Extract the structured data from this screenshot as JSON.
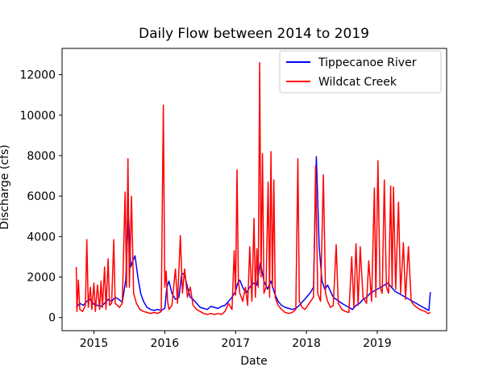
{
  "chart_data": {
    "type": "line",
    "title": "Daily Flow between 2014 to 2019",
    "xlabel": "Date",
    "ylabel": "Discharge (cfs)",
    "xlim": [
      2014.55,
      2019.98
    ],
    "ylim": [
      -650,
      13300
    ],
    "x_ticks": [
      2015,
      2016,
      2017,
      2018,
      2019
    ],
    "x_tick_labels": [
      "2015",
      "2016",
      "2017",
      "2018",
      "2019"
    ],
    "y_ticks": [
      0,
      2000,
      4000,
      6000,
      8000,
      10000,
      12000
    ],
    "y_tick_labels": [
      "0",
      "2000",
      "4000",
      "6000",
      "8000",
      "10000",
      "12000"
    ],
    "grid": false,
    "legend_position": "top-right",
    "series": [
      {
        "name": "Tippecanoe River",
        "color": "#0000ff",
        "points": [
          [
            2014.75,
            500
          ],
          [
            2014.8,
            700
          ],
          [
            2014.85,
            600
          ],
          [
            2014.9,
            800
          ],
          [
            2014.95,
            900
          ],
          [
            2015.0,
            650
          ],
          [
            2015.05,
            600
          ],
          [
            2015.1,
            550
          ],
          [
            2015.15,
            700
          ],
          [
            2015.2,
            900
          ],
          [
            2015.25,
            800
          ],
          [
            2015.3,
            1000
          ],
          [
            2015.35,
            900
          ],
          [
            2015.4,
            750
          ],
          [
            2015.45,
            1900
          ],
          [
            2015.47,
            3700
          ],
          [
            2015.49,
            4900
          ],
          [
            2015.52,
            2500
          ],
          [
            2015.55,
            2800
          ],
          [
            2015.58,
            3050
          ],
          [
            2015.62,
            2000
          ],
          [
            2015.66,
            1200
          ],
          [
            2015.7,
            800
          ],
          [
            2015.75,
            500
          ],
          [
            2015.8,
            400
          ],
          [
            2015.85,
            350
          ],
          [
            2015.9,
            400
          ],
          [
            2015.95,
            350
          ],
          [
            2016.0,
            450
          ],
          [
            2016.03,
            1500
          ],
          [
            2016.06,
            1800
          ],
          [
            2016.1,
            1200
          ],
          [
            2016.15,
            900
          ],
          [
            2016.2,
            1000
          ],
          [
            2016.24,
            2200
          ],
          [
            2016.28,
            2100
          ],
          [
            2016.32,
            1500
          ],
          [
            2016.36,
            1000
          ],
          [
            2016.4,
            900
          ],
          [
            2016.45,
            700
          ],
          [
            2016.5,
            500
          ],
          [
            2016.55,
            450
          ],
          [
            2016.6,
            400
          ],
          [
            2016.65,
            550
          ],
          [
            2016.7,
            500
          ],
          [
            2016.75,
            450
          ],
          [
            2016.8,
            550
          ],
          [
            2016.85,
            600
          ],
          [
            2016.9,
            800
          ],
          [
            2016.95,
            1000
          ],
          [
            2017.0,
            1300
          ],
          [
            2017.03,
            1700
          ],
          [
            2017.06,
            1850
          ],
          [
            2017.1,
            1500
          ],
          [
            2017.15,
            1200
          ],
          [
            2017.2,
            1500
          ],
          [
            2017.25,
            1700
          ],
          [
            2017.3,
            1600
          ],
          [
            2017.35,
            2700
          ],
          [
            2017.4,
            1800
          ],
          [
            2017.45,
            1400
          ],
          [
            2017.5,
            1800
          ],
          [
            2017.55,
            1200
          ],
          [
            2017.6,
            800
          ],
          [
            2017.65,
            600
          ],
          [
            2017.7,
            500
          ],
          [
            2017.75,
            450
          ],
          [
            2017.8,
            400
          ],
          [
            2017.85,
            450
          ],
          [
            2017.9,
            600
          ],
          [
            2017.95,
            800
          ],
          [
            2018.0,
            1000
          ],
          [
            2018.05,
            1200
          ],
          [
            2018.1,
            1500
          ],
          [
            2018.14,
            7950
          ],
          [
            2018.18,
            3500
          ],
          [
            2018.22,
            1800
          ],
          [
            2018.26,
            1400
          ],
          [
            2018.3,
            1600
          ],
          [
            2018.34,
            1300
          ],
          [
            2018.38,
            1000
          ],
          [
            2018.42,
            900
          ],
          [
            2018.46,
            800
          ],
          [
            2018.5,
            700
          ],
          [
            2018.55,
            600
          ],
          [
            2018.6,
            500
          ],
          [
            2018.65,
            400
          ],
          [
            2018.7,
            600
          ],
          [
            2018.75,
            700
          ],
          [
            2018.8,
            900
          ],
          [
            2018.85,
            1000
          ],
          [
            2018.9,
            1200
          ],
          [
            2018.95,
            1300
          ],
          [
            2019.0,
            1400
          ],
          [
            2019.05,
            1500
          ],
          [
            2019.1,
            1600
          ],
          [
            2019.15,
            1700
          ],
          [
            2019.2,
            1500
          ],
          [
            2019.25,
            1300
          ],
          [
            2019.3,
            1200
          ],
          [
            2019.35,
            1100
          ],
          [
            2019.4,
            1000
          ],
          [
            2019.45,
            900
          ],
          [
            2019.5,
            800
          ],
          [
            2019.55,
            700
          ],
          [
            2019.6,
            600
          ],
          [
            2019.65,
            500
          ],
          [
            2019.7,
            400
          ],
          [
            2019.73,
            350
          ],
          [
            2019.75,
            1250
          ]
        ]
      },
      {
        "name": "Wildcat Creek",
        "color": "#ff0000",
        "points": [
          [
            2014.75,
            2500
          ],
          [
            2014.76,
            300
          ],
          [
            2014.78,
            1850
          ],
          [
            2014.8,
            400
          ],
          [
            2014.84,
            300
          ],
          [
            2014.88,
            600
          ],
          [
            2014.9,
            3850
          ],
          [
            2014.92,
            500
          ],
          [
            2014.95,
            1500
          ],
          [
            2014.97,
            400
          ],
          [
            2015.0,
            1700
          ],
          [
            2015.02,
            300
          ],
          [
            2015.05,
            1600
          ],
          [
            2015.08,
            400
          ],
          [
            2015.1,
            1800
          ],
          [
            2015.12,
            500
          ],
          [
            2015.15,
            2500
          ],
          [
            2015.17,
            400
          ],
          [
            2015.2,
            2900
          ],
          [
            2015.22,
            600
          ],
          [
            2015.25,
            700
          ],
          [
            2015.28,
            3850
          ],
          [
            2015.3,
            700
          ],
          [
            2015.33,
            600
          ],
          [
            2015.36,
            500
          ],
          [
            2015.4,
            700
          ],
          [
            2015.44,
            6200
          ],
          [
            2015.46,
            1500
          ],
          [
            2015.48,
            7850
          ],
          [
            2015.5,
            1500
          ],
          [
            2015.53,
            6000
          ],
          [
            2015.56,
            1200
          ],
          [
            2015.6,
            700
          ],
          [
            2015.65,
            400
          ],
          [
            2015.7,
            300
          ],
          [
            2015.75,
            250
          ],
          [
            2015.8,
            200
          ],
          [
            2015.85,
            250
          ],
          [
            2015.9,
            200
          ],
          [
            2015.95,
            300
          ],
          [
            2015.98,
            10500
          ],
          [
            2016.0,
            1500
          ],
          [
            2016.02,
            2300
          ],
          [
            2016.04,
            800
          ],
          [
            2016.06,
            400
          ],
          [
            2016.1,
            600
          ],
          [
            2016.15,
            2400
          ],
          [
            2016.18,
            700
          ],
          [
            2016.22,
            4050
          ],
          [
            2016.25,
            1200
          ],
          [
            2016.28,
            2400
          ],
          [
            2016.32,
            1000
          ],
          [
            2016.36,
            1500
          ],
          [
            2016.4,
            600
          ],
          [
            2016.45,
            400
          ],
          [
            2016.5,
            300
          ],
          [
            2016.55,
            200
          ],
          [
            2016.6,
            150
          ],
          [
            2016.65,
            200
          ],
          [
            2016.7,
            150
          ],
          [
            2016.75,
            200
          ],
          [
            2016.8,
            150
          ],
          [
            2016.85,
            300
          ],
          [
            2016.9,
            700
          ],
          [
            2016.95,
            400
          ],
          [
            2016.98,
            3300
          ],
          [
            2017.0,
            1100
          ],
          [
            2017.02,
            7300
          ],
          [
            2017.04,
            1800
          ],
          [
            2017.06,
            1200
          ],
          [
            2017.1,
            800
          ],
          [
            2017.14,
            1500
          ],
          [
            2017.17,
            600
          ],
          [
            2017.2,
            3500
          ],
          [
            2017.23,
            800
          ],
          [
            2017.26,
            4900
          ],
          [
            2017.28,
            1000
          ],
          [
            2017.3,
            3400
          ],
          [
            2017.32,
            1500
          ],
          [
            2017.34,
            12600
          ],
          [
            2017.36,
            2000
          ],
          [
            2017.38,
            8100
          ],
          [
            2017.4,
            1200
          ],
          [
            2017.43,
            1500
          ],
          [
            2017.46,
            6700
          ],
          [
            2017.48,
            1000
          ],
          [
            2017.5,
            8200
          ],
          [
            2017.52,
            1500
          ],
          [
            2017.54,
            6800
          ],
          [
            2017.56,
            1000
          ],
          [
            2017.6,
            600
          ],
          [
            2017.65,
            400
          ],
          [
            2017.7,
            250
          ],
          [
            2017.75,
            200
          ],
          [
            2017.8,
            250
          ],
          [
            2017.85,
            400
          ],
          [
            2017.88,
            7850
          ],
          [
            2017.9,
            800
          ],
          [
            2017.94,
            500
          ],
          [
            2017.98,
            400
          ],
          [
            2018.02,
            600
          ],
          [
            2018.06,
            800
          ],
          [
            2018.1,
            1000
          ],
          [
            2018.13,
            7500
          ],
          [
            2018.16,
            1200
          ],
          [
            2018.2,
            800
          ],
          [
            2018.24,
            7050
          ],
          [
            2018.27,
            1200
          ],
          [
            2018.3,
            800
          ],
          [
            2018.34,
            500
          ],
          [
            2018.38,
            600
          ],
          [
            2018.42,
            3600
          ],
          [
            2018.45,
            700
          ],
          [
            2018.5,
            400
          ],
          [
            2018.55,
            300
          ],
          [
            2018.6,
            250
          ],
          [
            2018.64,
            3000
          ],
          [
            2018.67,
            500
          ],
          [
            2018.7,
            3650
          ],
          [
            2018.73,
            600
          ],
          [
            2018.76,
            3500
          ],
          [
            2018.8,
            1000
          ],
          [
            2018.85,
            700
          ],
          [
            2018.88,
            2800
          ],
          [
            2018.92,
            800
          ],
          [
            2018.96,
            6400
          ],
          [
            2018.98,
            1000
          ],
          [
            2019.01,
            7750
          ],
          [
            2019.04,
            1500
          ],
          [
            2019.07,
            1200
          ],
          [
            2019.1,
            6800
          ],
          [
            2019.13,
            1500
          ],
          [
            2019.16,
            1200
          ],
          [
            2019.19,
            6500
          ],
          [
            2019.21,
            1500
          ],
          [
            2019.23,
            6450
          ],
          [
            2019.26,
            1400
          ],
          [
            2019.3,
            5700
          ],
          [
            2019.33,
            1200
          ],
          [
            2019.37,
            3700
          ],
          [
            2019.4,
            900
          ],
          [
            2019.44,
            3500
          ],
          [
            2019.48,
            800
          ],
          [
            2019.52,
            600
          ],
          [
            2019.56,
            500
          ],
          [
            2019.6,
            400
          ],
          [
            2019.64,
            350
          ],
          [
            2019.68,
            300
          ],
          [
            2019.72,
            200
          ],
          [
            2019.75,
            250
          ]
        ]
      }
    ]
  }
}
